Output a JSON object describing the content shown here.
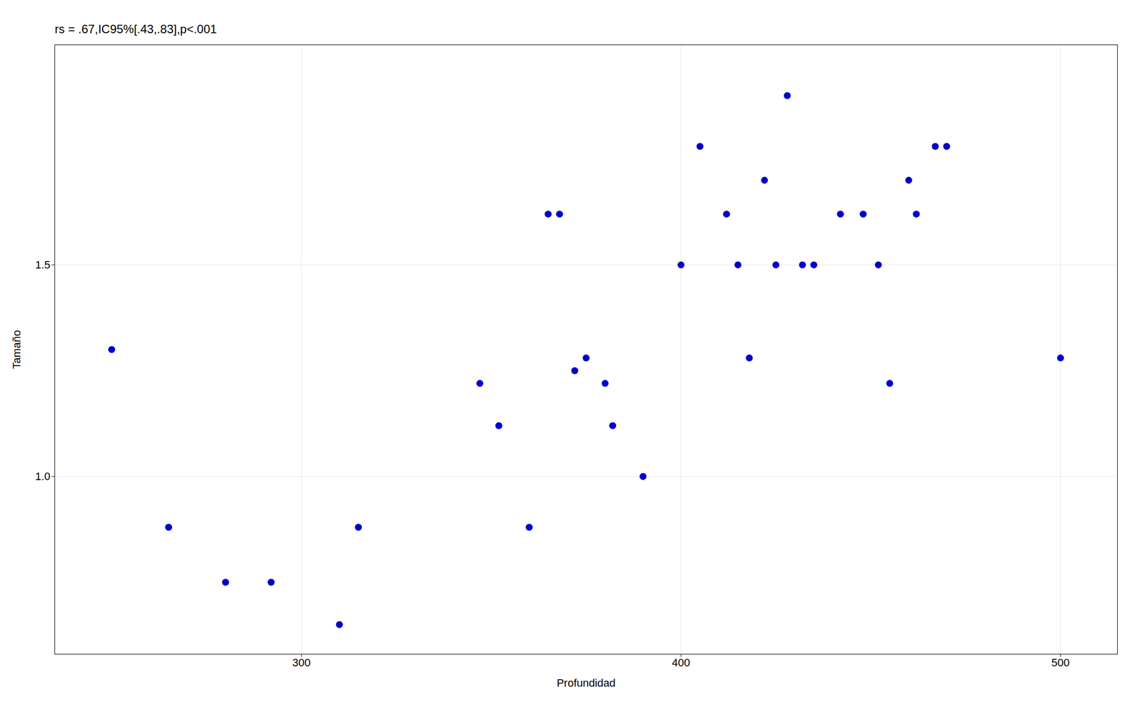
{
  "chart_data": {
    "type": "scatter",
    "annotation": "rs = .67,IC95%[.43,.83],p<.001",
    "xlabel": "Profundidad",
    "ylabel": "Tamaño",
    "x": [
      250,
      265,
      280,
      292,
      310,
      315,
      347,
      352,
      360,
      365,
      368,
      372,
      375,
      380,
      382,
      390,
      400,
      405,
      412,
      415,
      418,
      422,
      425,
      428,
      432,
      435,
      442,
      448,
      452,
      455,
      460,
      462,
      467,
      470,
      500
    ],
    "values": [
      1.3,
      0.88,
      0.75,
      0.75,
      0.65,
      0.88,
      1.22,
      1.12,
      0.88,
      1.62,
      1.62,
      1.25,
      1.28,
      1.22,
      1.12,
      1.0,
      1.5,
      1.78,
      1.62,
      1.5,
      1.28,
      1.7,
      1.5,
      1.9,
      1.5,
      1.5,
      1.62,
      1.62,
      1.5,
      1.22,
      1.7,
      1.62,
      1.78,
      1.78,
      1.28
    ],
    "color": "#0000CC",
    "xlim": [
      235,
      515
    ],
    "ylim": [
      0.58,
      2.02
    ],
    "xticks": [
      300,
      400,
      500
    ],
    "yticks": [
      {
        "value": 1,
        "label": "1.0"
      },
      1.5
    ],
    "grid": true
  }
}
